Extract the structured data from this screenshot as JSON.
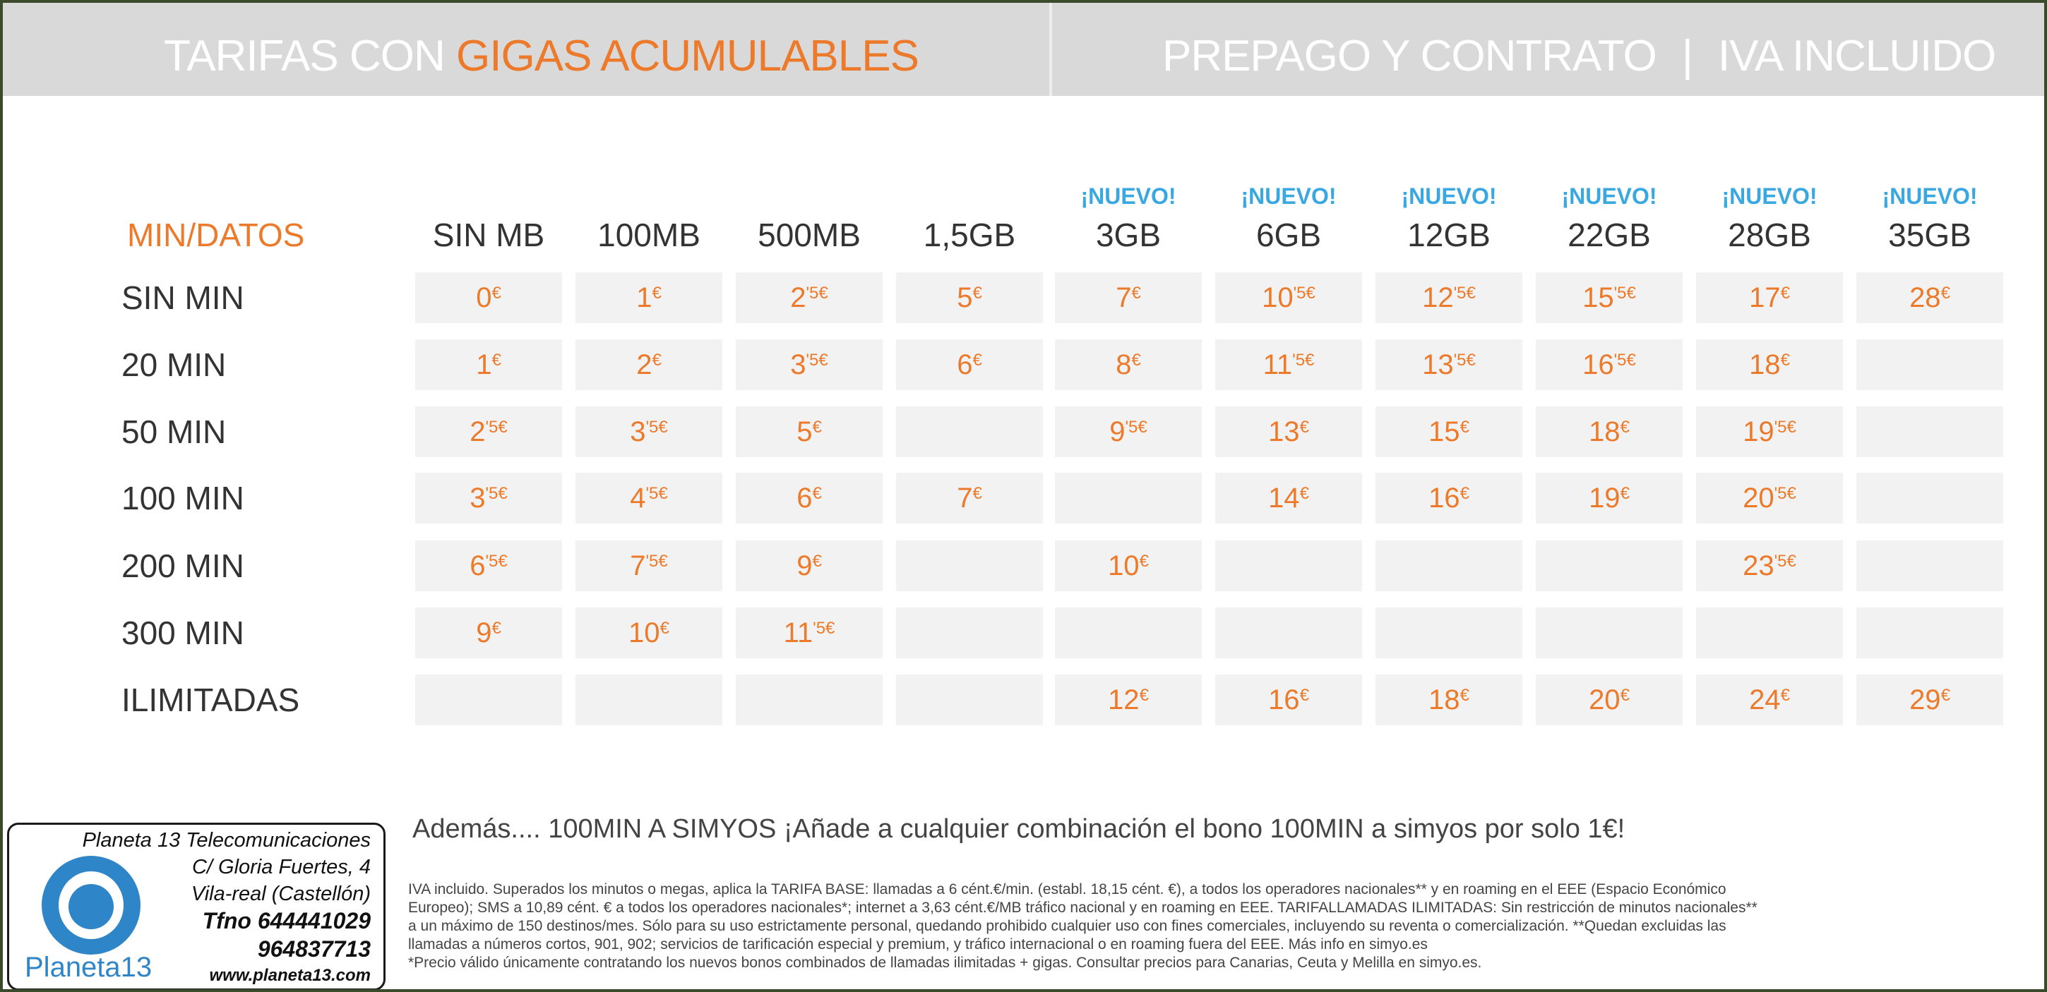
{
  "header": {
    "left_prefix": "TARIFAS CON",
    "left_accent": "GIGAS ACUMULABLES",
    "right_a": "PREPAGO Y CONTRATO",
    "right_sep": "|",
    "right_b": "IVA INCLUIDO"
  },
  "table": {
    "corner": "MIN/DATOS",
    "columns": [
      {
        "label": "SIN MB",
        "badge": ""
      },
      {
        "label": "100MB",
        "badge": ""
      },
      {
        "label": "500MB",
        "badge": ""
      },
      {
        "label": "1,5GB",
        "badge": ""
      },
      {
        "label": "3GB",
        "badge": "¡NUEVO!"
      },
      {
        "label": "6GB",
        "badge": "¡NUEVO!"
      },
      {
        "label": "12GB",
        "badge": "¡NUEVO!"
      },
      {
        "label": "22GB",
        "badge": "¡NUEVO!"
      },
      {
        "label": "28GB",
        "badge": "¡NUEVO!"
      },
      {
        "label": "35GB",
        "badge": "¡NUEVO!"
      }
    ],
    "rows": [
      {
        "label": "SIN MIN",
        "cells": [
          [
            "0",
            ""
          ],
          [
            "1",
            ""
          ],
          [
            "2",
            "'5"
          ],
          [
            "5",
            ""
          ],
          [
            "7",
            ""
          ],
          [
            "10",
            "'5"
          ],
          [
            "12",
            "'5"
          ],
          [
            "15",
            "'5"
          ],
          [
            "17",
            ""
          ],
          [
            "28",
            ""
          ]
        ]
      },
      {
        "label": "20 MIN",
        "cells": [
          [
            "1",
            ""
          ],
          [
            "2",
            ""
          ],
          [
            "3",
            "'5"
          ],
          [
            "6",
            ""
          ],
          [
            "8",
            ""
          ],
          [
            "11",
            "'5"
          ],
          [
            "13",
            "'5"
          ],
          [
            "16",
            "'5"
          ],
          [
            "18",
            ""
          ],
          null
        ]
      },
      {
        "label": "50 MIN",
        "cells": [
          [
            "2",
            "'5"
          ],
          [
            "3",
            "'5"
          ],
          [
            "5",
            ""
          ],
          null,
          [
            "9",
            "'5"
          ],
          [
            "13",
            ""
          ],
          [
            "15",
            ""
          ],
          [
            "18",
            ""
          ],
          [
            "19",
            "'5"
          ],
          null
        ]
      },
      {
        "label": "100 MIN",
        "cells": [
          [
            "3",
            "'5"
          ],
          [
            "4",
            "'5"
          ],
          [
            "6",
            ""
          ],
          [
            "7",
            ""
          ],
          null,
          [
            "14",
            ""
          ],
          [
            "16",
            ""
          ],
          [
            "19",
            ""
          ],
          [
            "20",
            "'5"
          ],
          null
        ]
      },
      {
        "label": "200 MIN",
        "cells": [
          [
            "6",
            "'5"
          ],
          [
            "7",
            "'5"
          ],
          [
            "9",
            ""
          ],
          null,
          [
            "10",
            ""
          ],
          null,
          null,
          null,
          [
            "23",
            "'5"
          ],
          null
        ]
      },
      {
        "label": "300 MIN",
        "cells": [
          [
            "9",
            ""
          ],
          [
            "10",
            ""
          ],
          [
            "11",
            "'5"
          ],
          null,
          null,
          null,
          null,
          null,
          null,
          null
        ]
      },
      {
        "label": "ILIMITADAS",
        "cells": [
          null,
          null,
          null,
          null,
          [
            "12",
            ""
          ],
          [
            "16",
            ""
          ],
          [
            "18",
            ""
          ],
          [
            "20",
            ""
          ],
          [
            "24",
            ""
          ],
          [
            "29",
            ""
          ]
        ]
      }
    ],
    "currency": "€"
  },
  "promo": {
    "text": "Además.... 100MIN A SIMYOS  ¡Añade a cualquier combinación el bono 100MIN a simyos por solo 1€!"
  },
  "legal": {
    "lines": [
      "IVA incluido. Superados los minutos o megas, aplica la TARIFA BASE: llamadas a 6 cént.€/min. (establ. 18,15 cént. €), a todos los operadores nacionales** y en roaming en el EEE (Espacio Económico",
      "Europeo); SMS a 10,89 cént. € a todos los operadores nacionales*; internet a 3,63 cént.€/MB tráfico nacional y en roaming en EEE. TARIFALLAMADAS ILIMITADAS: Sin restricción de minutos nacionales**",
      "a un máximo de 150 destinos/mes. Sólo para su uso estrictamente personal, quedando prohibido cualquier uso con fines comerciales, incluyendo su reventa o comercialización. **Quedan excluidas las",
      "llamadas a números cortos, 901, 902; servicios de tarificación especial y premium, y tráfico internacional o en roaming fuera del EEE. Más info en simyo.es",
      "*Precio válido únicamente contratando los nuevos bonos combinados de llamadas ilimitadas + gigas. Consultar precios para Canarias, Ceuta y Melilla en simyo.es."
    ]
  },
  "stamp": {
    "company": "Planeta 13 Telecomunicaciones",
    "street": "C/ Gloria Fuertes, 4",
    "city": "Vila-real (Castellón)",
    "phone1": "Tfno 644441029",
    "phone2": "964837713",
    "web": "www.planeta13.com",
    "brand": "Planeta13"
  }
}
